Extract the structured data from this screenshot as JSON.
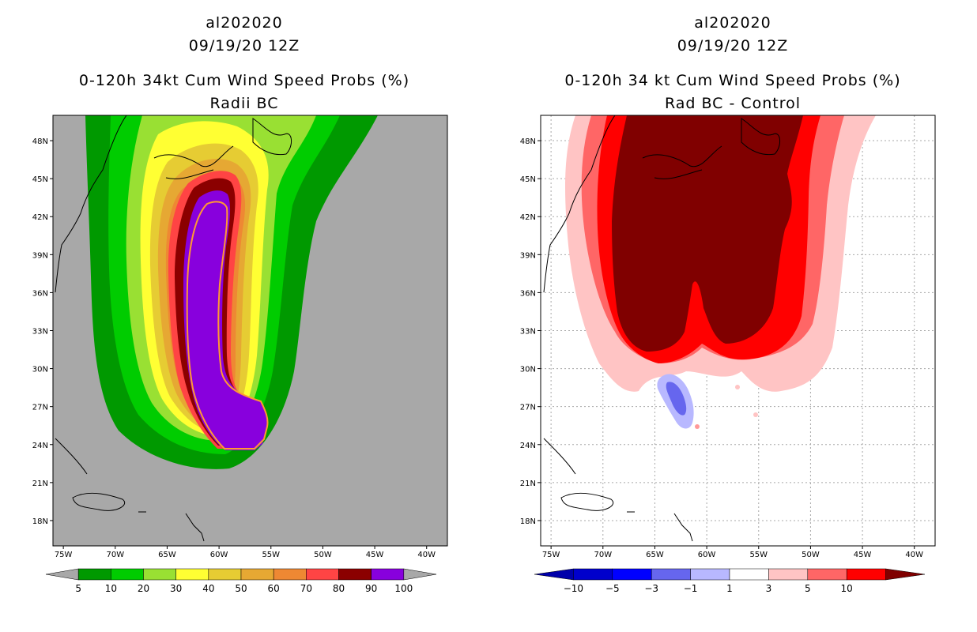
{
  "chart_data": [
    {
      "type": "heatmap",
      "title_lines": [
        "al202020",
        "09/19/20 12Z",
        "0-120h 34kt Cum Wind Speed Probs (%)",
        "Radii BC"
      ],
      "field": "Cumulative 34kt wind speed probability (%)",
      "x_ticks": [
        "75W",
        "70W",
        "65W",
        "60W",
        "55W",
        "50W",
        "45W",
        "40W"
      ],
      "y_ticks": [
        "48N",
        "45N",
        "42N",
        "39N",
        "36N",
        "33N",
        "30N",
        "27N",
        "24N",
        "21N",
        "18N"
      ],
      "xlim": [
        -76,
        -38
      ],
      "ylim": [
        16,
        50
      ],
      "background": "#a8a8a8",
      "colorbar": {
        "labels": [
          "5",
          "10",
          "20",
          "30",
          "40",
          "50",
          "60",
          "70",
          "80",
          "90",
          "100"
        ],
        "colors": [
          "#009900",
          "#00cc00",
          "#99e033",
          "#ffff33",
          "#e6cc33",
          "#e6a833",
          "#ee8833",
          "#ff4444",
          "#8b0000",
          "#8800dd"
        ],
        "end_colors": [
          "#a8a8a8",
          "#a8a8a8"
        ]
      }
    },
    {
      "type": "heatmap",
      "title_lines": [
        "al202020",
        "09/19/20 12Z",
        "0-120h 34 kt Cum Wind Speed Probs (%)",
        "Rad BC - Control"
      ],
      "field": "Difference in cumulative 34kt wind speed probability (%)",
      "x_ticks": [
        "75W",
        "70W",
        "65W",
        "60W",
        "55W",
        "50W",
        "45W",
        "40W"
      ],
      "y_ticks": [
        "48N",
        "45N",
        "42N",
        "39N",
        "36N",
        "33N",
        "30N",
        "27N",
        "24N",
        "21N",
        "18N"
      ],
      "xlim": [
        -76,
        -38
      ],
      "ylim": [
        16,
        50
      ],
      "background": "#ffffff",
      "colorbar": {
        "labels": [
          "-10",
          "-5",
          "-3",
          "-1",
          "1",
          "3",
          "5",
          "10"
        ],
        "colors": [
          "#0000cc",
          "#0000ff",
          "#6666ee",
          "#b8b8ff",
          "#ffffff",
          "#ffc4c4",
          "#ff6666",
          "#ff0000"
        ],
        "end_colors": [
          "#0000aa",
          "#800000"
        ]
      }
    }
  ]
}
